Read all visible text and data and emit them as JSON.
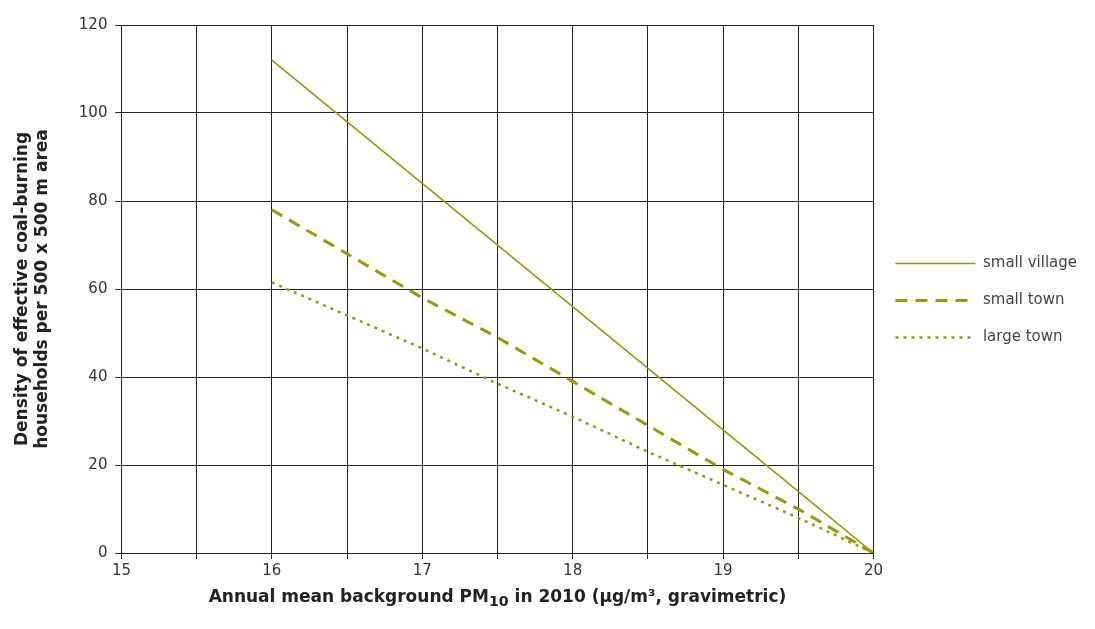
{
  "chart_data": {
    "type": "line",
    "xlabel": "Annual mean background PM$_{10}$ in 2010 (μg/m³, gravimetric)",
    "ylabel": "Density of effective coal-burning\nhouseholds per 500 x 500 m area",
    "xlim": [
      15,
      20
    ],
    "ylim": [
      0,
      120
    ],
    "xticks": [
      15,
      {
        "value": 15.5,
        "label": null
      },
      16,
      {
        "value": 16.5,
        "label": null
      },
      17,
      {
        "value": 17.5,
        "label": null
      },
      18,
      {
        "value": 18.5,
        "label": null
      },
      19,
      {
        "value": 19.5,
        "label": null
      },
      20
    ],
    "yticks": [
      0,
      20,
      40,
      60,
      80,
      100,
      120
    ],
    "grid": true,
    "legend": "right",
    "marker": "none",
    "series": [
      {
        "name": "small village",
        "color": "#999900",
        "line_style": "solid",
        "x": [
          16,
          17,
          18,
          19,
          20
        ],
        "values": [
          112,
          84,
          56,
          28,
          0
        ]
      },
      {
        "name": "small town",
        "color": "#999900",
        "line_style": "dashed",
        "x": [
          16,
          16.5,
          17,
          17.5,
          18,
          18.5,
          19,
          19.5,
          20
        ],
        "values": [
          78,
          68,
          58,
          49,
          39,
          29,
          19,
          10,
          0
        ]
      },
      {
        "name": "large town",
        "color": "#999900",
        "line_style": "dotted",
        "x": [
          16,
          16.5,
          17,
          17.5,
          18,
          18.5,
          19,
          19.5,
          20
        ],
        "values": [
          61.5,
          54,
          46.5,
          38.5,
          31,
          23,
          15.5,
          8,
          0
        ]
      }
    ]
  }
}
